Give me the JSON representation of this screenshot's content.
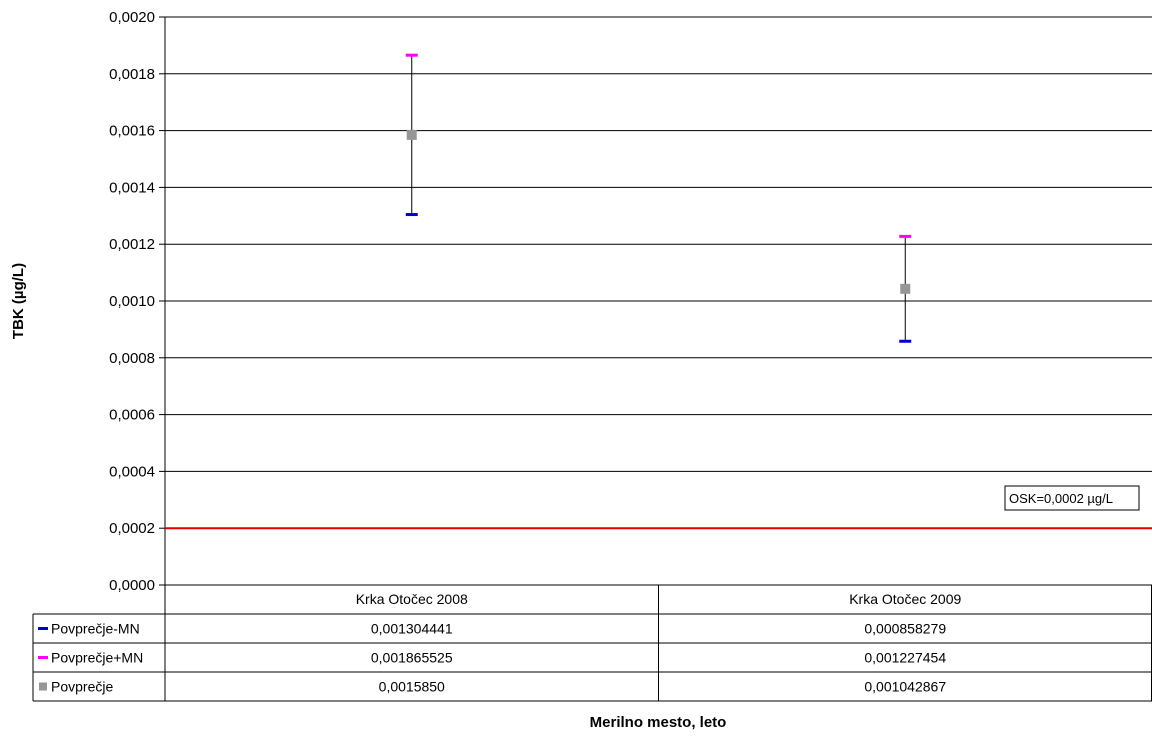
{
  "chart_data": {
    "type": "scatter",
    "ylabel": "TBK (µg/L)",
    "xlabel": "Merilno mesto, leto",
    "ylim": [
      0,
      0.002
    ],
    "y_ticks": [
      "0,0000",
      "0,0002",
      "0,0004",
      "0,0006",
      "0,0008",
      "0,0010",
      "0,0012",
      "0,0014",
      "0,0016",
      "0,0018",
      "0,0020"
    ],
    "grid": true,
    "categories": [
      "Krka Otočec 2008",
      "Krka Otočec 2009"
    ],
    "series": [
      {
        "name": "Povprečje-MN",
        "color": "#0000cc",
        "marker": "dash",
        "values": [
          0.001304441,
          0.000858279
        ],
        "labels": [
          "0,001304441",
          "0,000858279"
        ]
      },
      {
        "name": "Povprečje+MN",
        "color": "#ff00ff",
        "marker": "dash",
        "values": [
          0.001865525,
          0.001227454
        ],
        "labels": [
          "0,001865525",
          "0,001227454"
        ]
      },
      {
        "name": "Povprečje",
        "color": "#969696",
        "marker": "square",
        "values": [
          0.001585,
          0.001042867
        ],
        "labels": [
          "0,0015850",
          "0,001042867"
        ]
      }
    ],
    "reference_line": {
      "value": 0.0002,
      "color": "#e00000",
      "label": "OSK=0,0002 µg/L"
    },
    "legend_placement": "data-table"
  }
}
